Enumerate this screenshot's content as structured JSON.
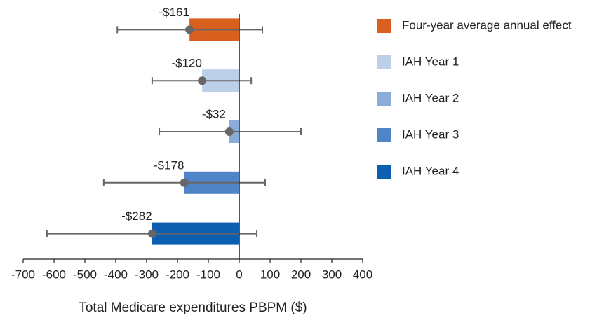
{
  "chart_data": {
    "type": "bar",
    "orientation": "horizontal",
    "x_label": "Total Medicare expenditures PBPM ($)",
    "categories": [
      "Four-year average annual effect",
      "IAH Year 1",
      "IAH Year 2",
      "IAH Year 3",
      "IAH Year 4"
    ],
    "values": [
      -161,
      -120,
      -32,
      -178,
      -282
    ],
    "value_labels": [
      "-$161",
      "-$120",
      "-$32",
      "-$178",
      "-$282"
    ],
    "ci_low": [
      -395,
      -282,
      -259,
      -439,
      -623
    ],
    "ci_high": [
      75,
      39,
      200,
      84,
      57
    ],
    "colors": [
      "#d95f1f",
      "#bdd0ea",
      "#8aacd8",
      "#4f85c6",
      "#0b5fae"
    ],
    "xlim": [
      -700,
      400
    ],
    "xticks": [
      -700,
      -600,
      -500,
      -400,
      -300,
      -200,
      -100,
      0,
      100,
      200,
      300,
      400
    ],
    "legend": "right"
  }
}
